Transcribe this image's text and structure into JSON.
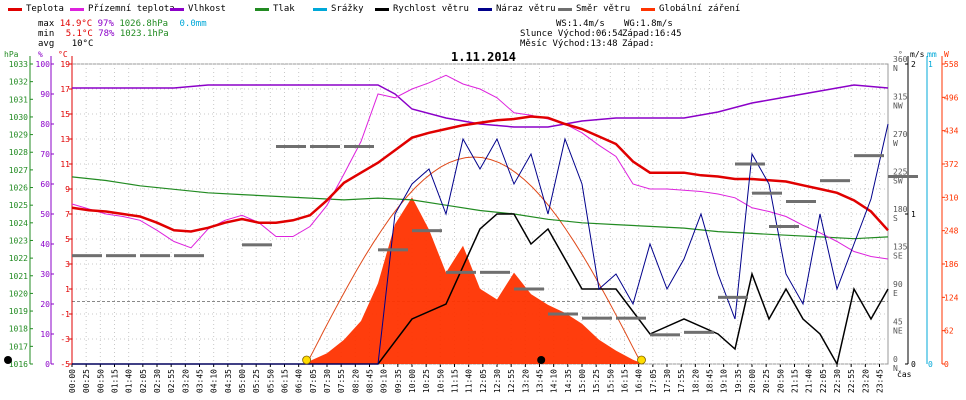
{
  "legend": [
    {
      "name": "Teplota",
      "color": "#e00000"
    },
    {
      "name": "Přízemní teplota",
      "color": "#dd22dd"
    },
    {
      "name": "Vlhkost",
      "color": "#8b00c8"
    },
    {
      "name": "Tlak",
      "color": "#228b22"
    },
    {
      "name": "Srážky",
      "color": "#00a8d8"
    },
    {
      "name": "Rychlost větru",
      "color": "#000000"
    },
    {
      "name": "Náraz větru",
      "color": "#00008b"
    },
    {
      "name": "Směr větru",
      "color": "#6f6f6f"
    },
    {
      "name": "Globální záření",
      "color": "#ff3300"
    }
  ],
  "stats": {
    "max_label": "max",
    "max_temp": "14.9°C",
    "max_hum": "97%",
    "max_press": "1026.8hPa",
    "rain": "0.0mm",
    "min_label": "min",
    "min_temp": "5.1°C",
    "min_hum": "78%",
    "min_press": "1023.1hPa",
    "avg_label": "avg",
    "avg_temp": "10°C"
  },
  "info": {
    "ws": "WS:1.4m/s",
    "wg": "WG:1.8m/s",
    "slunce": "Slunce Východ:06:54",
    "slunce_zapad": "Západ:16:45",
    "mesic": "Měsíc  Východ:13:48",
    "mesic_zapad": "Západ:"
  },
  "chart_data": {
    "type": "line",
    "title": "1.11.2014",
    "xlabel": "čas",
    "axis_units": {
      "pressure": "hPa",
      "humidity": "%",
      "temperature": "°C",
      "wind_dir": "°",
      "wind_speed": "m/s",
      "rain": "mm",
      "radiation": "W"
    },
    "pressure_ticks": [
      1016,
      1017,
      1018,
      1019,
      1020,
      1021,
      1022,
      1023,
      1024,
      1025,
      1026,
      1027,
      1028,
      1029,
      1030,
      1031,
      1032,
      1033
    ],
    "humidity_ticks": [
      0,
      10,
      20,
      30,
      40,
      50,
      60,
      70,
      80,
      90,
      100
    ],
    "temp_ticks": [
      -5,
      -3,
      -1,
      1,
      3,
      5,
      7,
      9,
      11,
      13,
      15,
      17,
      19
    ],
    "dir_ticks": [
      {
        "v": 0,
        "l": "N"
      },
      {
        "v": 45,
        "l": "NE"
      },
      {
        "v": 90,
        "l": "E"
      },
      {
        "v": 135,
        "l": "SE"
      },
      {
        "v": 180,
        "l": "S"
      },
      {
        "v": 225,
        "l": "SW"
      },
      {
        "v": 270,
        "l": "W"
      },
      {
        "v": 315,
        "l": "NW"
      },
      {
        "v": 360,
        "l": "N"
      }
    ],
    "speed_ticks": [
      0,
      1,
      2
    ],
    "rain_ticks": [
      0,
      1
    ],
    "rad_ticks": [
      0,
      62,
      124,
      186,
      248,
      310,
      372,
      434,
      496,
      558
    ],
    "x_ticks": [
      "00:00",
      "00:25",
      "00:50",
      "01:15",
      "01:40",
      "02:05",
      "02:30",
      "02:55",
      "03:20",
      "03:45",
      "04:10",
      "04:35",
      "05:00",
      "05:25",
      "05:50",
      "06:15",
      "06:40",
      "07:05",
      "07:30",
      "07:55",
      "08:20",
      "08:45",
      "09:10",
      "09:35",
      "10:00",
      "10:25",
      "10:50",
      "11:15",
      "11:40",
      "12:05",
      "12:30",
      "12:55",
      "13:20",
      "13:45",
      "14:10",
      "14:35",
      "15:00",
      "15:25",
      "15:50",
      "16:15",
      "16:40",
      "17:05",
      "17:30",
      "17:55",
      "18:20",
      "18:45",
      "19:10",
      "19:35",
      "20:00",
      "20:25",
      "20:50",
      "21:15",
      "21:40",
      "22:05",
      "22:30",
      "22:55",
      "23:20",
      "23:45"
    ],
    "series": [
      {
        "name": "Teplota",
        "unit": "°C",
        "x": [
          0,
          0.5,
          1,
          1.5,
          2,
          2.5,
          3,
          3.5,
          4,
          4.5,
          5,
          5.5,
          6,
          6.5,
          7,
          7.5,
          8,
          8.5,
          9,
          9.5,
          10,
          10.5,
          11,
          11.5,
          12,
          12.5,
          13,
          13.5,
          14,
          14.5,
          15,
          15.5,
          16,
          16.5,
          17,
          17.5,
          18,
          18.5,
          19,
          19.5,
          20,
          20.5,
          21,
          21.5,
          22,
          22.5,
          23,
          23.5,
          24
        ],
        "values": [
          7.5,
          7.3,
          7.2,
          7.0,
          6.8,
          6.3,
          5.7,
          5.6,
          5.9,
          6.3,
          6.6,
          6.3,
          6.3,
          6.5,
          6.9,
          8.1,
          9.5,
          10.3,
          11.1,
          12.1,
          13.1,
          13.5,
          13.8,
          14.1,
          14.3,
          14.5,
          14.6,
          14.8,
          14.7,
          14.2,
          13.8,
          13.2,
          12.6,
          11.2,
          10.3,
          10.3,
          10.3,
          10.1,
          10.0,
          9.8,
          9.8,
          9.7,
          9.6,
          9.3,
          9.0,
          8.7,
          8.1,
          7.2,
          5.7
        ]
      },
      {
        "name": "Přízemní teplota",
        "unit": "°C",
        "x": [
          0,
          0.5,
          1,
          1.5,
          2,
          2.5,
          3,
          3.5,
          4,
          4.5,
          5,
          5.5,
          6,
          6.5,
          7,
          7.5,
          8,
          8.5,
          9,
          9.5,
          10,
          10.5,
          11,
          11.5,
          12,
          12.5,
          13,
          13.5,
          14,
          14.5,
          15,
          15.5,
          16,
          16.5,
          17,
          17.5,
          18,
          18.5,
          19,
          19.5,
          20,
          20.5,
          21,
          21.5,
          22,
          22.5,
          23,
          23.5,
          24
        ],
        "values": [
          7.8,
          7.4,
          7.0,
          6.8,
          6.5,
          5.7,
          4.8,
          4.3,
          5.8,
          6.5,
          6.9,
          6.3,
          5.2,
          5.2,
          6.0,
          7.7,
          10.2,
          12.8,
          16.6,
          16.3,
          17.0,
          17.5,
          18.1,
          17.4,
          17.0,
          16.3,
          15.1,
          14.9,
          14.6,
          14.2,
          13.5,
          12.5,
          11.6,
          9.4,
          9.0,
          9.0,
          8.9,
          8.8,
          8.6,
          8.3,
          7.5,
          7.2,
          6.8,
          6.1,
          5.5,
          4.8,
          4.0,
          3.6,
          3.4
        ]
      },
      {
        "name": "Vlhkost",
        "unit": "%",
        "x": [
          0,
          1,
          2,
          3,
          4,
          5,
          6,
          7,
          8,
          9,
          9.5,
          10,
          11,
          12,
          13,
          13.5,
          14,
          15,
          16,
          17,
          18,
          19,
          20,
          21,
          22,
          23,
          24
        ],
        "values": [
          92,
          92,
          92,
          92,
          93,
          93,
          93,
          93,
          93,
          93,
          90,
          85,
          82,
          80,
          79,
          79,
          79,
          81,
          82,
          82,
          82,
          84,
          87,
          89,
          91,
          93,
          92
        ]
      },
      {
        "name": "Tlak",
        "unit": "hPa",
        "x": [
          0,
          1,
          2,
          3,
          4,
          5,
          6,
          7,
          8,
          9,
          10,
          11,
          12,
          13,
          14,
          15,
          16,
          17,
          18,
          19,
          20,
          21,
          22,
          23,
          24
        ],
        "values": [
          1026.6,
          1026.4,
          1026.1,
          1025.9,
          1025.7,
          1025.6,
          1025.5,
          1025.4,
          1025.3,
          1025.4,
          1025.3,
          1025.0,
          1024.7,
          1024.5,
          1024.2,
          1024.0,
          1023.9,
          1023.8,
          1023.7,
          1023.5,
          1023.4,
          1023.3,
          1023.2,
          1023.1,
          1023.2
        ]
      },
      {
        "name": "Globální záření",
        "unit": "W",
        "x": [
          6.8,
          7.5,
          8,
          8.5,
          9,
          9.5,
          10,
          10.5,
          11,
          11.5,
          12,
          12.5,
          13,
          13.5,
          14,
          14.5,
          15,
          15.5,
          16,
          16.5,
          16.8
        ],
        "values": [
          0,
          20,
          45,
          80,
          150,
          260,
          310,
          250,
          170,
          220,
          140,
          120,
          170,
          130,
          110,
          95,
          75,
          45,
          25,
          8,
          0
        ]
      },
      {
        "name": "Rychlost větru",
        "unit": "m/s",
        "x": [
          0,
          7.5,
          9,
          10,
          11,
          12,
          12.5,
          13,
          13.5,
          14,
          14.5,
          15,
          16,
          17,
          18,
          19,
          19.5,
          20,
          20.5,
          21,
          21.5,
          22,
          22.5,
          23,
          23.5,
          24
        ],
        "values": [
          0,
          0,
          0,
          0.3,
          0.4,
          0.9,
          1.0,
          1.0,
          0.8,
          0.9,
          0.7,
          0.5,
          0.5,
          0.2,
          0.3,
          0.2,
          0.1,
          0.6,
          0.3,
          0.5,
          0.3,
          0.2,
          0,
          0.5,
          0.3,
          0.5
        ]
      },
      {
        "name": "Náraz větru",
        "unit": "m/s",
        "x": [
          0,
          8,
          9,
          9.5,
          10,
          10.5,
          11,
          11.5,
          12,
          12.5,
          13,
          13.5,
          14,
          14.5,
          15,
          15.5,
          16,
          16.5,
          17,
          17.5,
          18,
          18.5,
          19,
          19.5,
          20,
          20.5,
          21,
          21.5,
          22,
          22.5,
          23,
          23.5,
          24
        ],
        "values": [
          0,
          0,
          0,
          1.0,
          1.2,
          1.3,
          1.0,
          1.5,
          1.3,
          1.5,
          1.2,
          1.4,
          1.0,
          1.5,
          1.2,
          0.5,
          0.6,
          0.4,
          0.8,
          0.5,
          0.7,
          1.0,
          0.6,
          0.3,
          1.4,
          1.2,
          0.6,
          0.4,
          1.0,
          0.5,
          0.8,
          1.1,
          1.6
        ]
      },
      {
        "name": "Směr větru",
        "unit": "°",
        "x": [
          0,
          1,
          2,
          3,
          5,
          6,
          7,
          8,
          9,
          10,
          11,
          12,
          13,
          14,
          15,
          16,
          17,
          18,
          19,
          19.5,
          20,
          20.5,
          21,
          22,
          23,
          24
        ],
        "values": [
          130,
          130,
          130,
          130,
          143,
          261,
          261,
          261,
          137,
          160,
          110,
          110,
          90,
          60,
          55,
          55,
          35,
          38,
          80,
          240,
          205,
          165,
          195,
          220,
          250,
          225
        ]
      }
    ],
    "ylim_temp": [
      -5,
      19
    ],
    "ylim_humidity": [
      0,
      100
    ],
    "ylim_pressure": [
      1016,
      1033
    ],
    "ylim_dir": [
      0,
      360
    ],
    "ylim_speed": [
      0,
      2
    ],
    "ylim_rad": [
      0,
      558
    ],
    "sun_markers": [
      "06:54",
      "16:45"
    ],
    "moon_markers": [
      "13:48"
    ],
    "grid": true
  }
}
